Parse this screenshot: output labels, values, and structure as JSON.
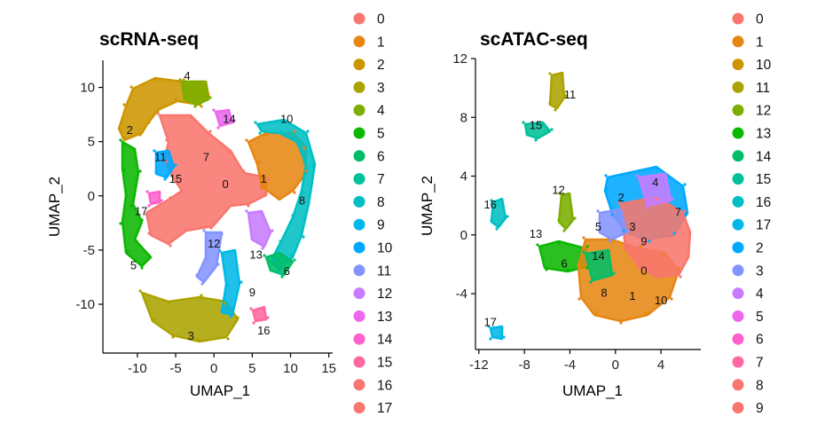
{
  "chart_data": [
    {
      "type": "scatter",
      "title": "scRNA-seq",
      "xlabel": "UMAP_1",
      "ylabel": "UMAP_2",
      "xlim": [
        -14.5,
        15.5
      ],
      "ylim": [
        -14.5,
        12.5
      ],
      "xticks": [
        -10,
        -5,
        0,
        5,
        10,
        15
      ],
      "yticks": [
        -10,
        -5,
        0,
        5,
        10
      ],
      "xtick_labels": [
        "-10",
        "-5",
        "0",
        "5",
        "10",
        "15"
      ],
      "ytick_labels": [
        "-10",
        "-5",
        "0",
        "5",
        "10"
      ],
      "legend": [
        "0",
        "1",
        "2",
        "3",
        "4",
        "5",
        "6",
        "7",
        "8",
        "9",
        "10",
        "11",
        "12",
        "13",
        "14",
        "15",
        "16",
        "17"
      ],
      "clusters": [
        {
          "label": "0",
          "x": 1.5,
          "y": 1.0,
          "color": "#F8766D"
        },
        {
          "label": "1",
          "x": 6.5,
          "y": 1.5,
          "color": "#E68613"
        },
        {
          "label": "2",
          "x": -11.0,
          "y": 6.0,
          "color": "#CD9600"
        },
        {
          "label": "3",
          "x": -3.0,
          "y": -13.0,
          "color": "#ABA300"
        },
        {
          "label": "4",
          "x": -3.5,
          "y": 11.0,
          "color": "#7CAE00"
        },
        {
          "label": "5",
          "x": -10.5,
          "y": -6.5,
          "color": "#0CB702"
        },
        {
          "label": "6",
          "x": 9.5,
          "y": -7.0,
          "color": "#00BE67"
        },
        {
          "label": "7",
          "x": -1.0,
          "y": 3.5,
          "color": "#00C19A"
        },
        {
          "label": "8",
          "x": 11.5,
          "y": -0.5,
          "color": "#00BFC4"
        },
        {
          "label": "9",
          "x": 5.0,
          "y": -9.0,
          "color": "#00B8E7"
        },
        {
          "label": "10",
          "x": 9.5,
          "y": 7.0,
          "color": "#00A9FF"
        },
        {
          "label": "11",
          "x": -7.0,
          "y": 3.5,
          "color": "#8494FF"
        },
        {
          "label": "12",
          "x": 0.0,
          "y": -4.5,
          "color": "#C77CFF"
        },
        {
          "label": "13",
          "x": 5.5,
          "y": -5.5,
          "color": "#ED68ED"
        },
        {
          "label": "14",
          "x": 2.0,
          "y": 7.0,
          "color": "#FF61CC"
        },
        {
          "label": "15",
          "x": -5.0,
          "y": 1.5,
          "color": "#FF68A1"
        },
        {
          "label": "16",
          "x": 6.5,
          "y": -12.5,
          "color": "#F8766D"
        },
        {
          "label": "17",
          "x": -9.5,
          "y": -1.5,
          "color": "#F8766D"
        }
      ]
    },
    {
      "type": "scatter",
      "title": "scATAC-seq",
      "xlabel": "UMAP_1",
      "ylabel": "UMAP_2",
      "xlim": [
        -12.3,
        7.5
      ],
      "ylim": [
        -7.8,
        12.0
      ],
      "xticks": [
        -12,
        -8,
        -4,
        0,
        4
      ],
      "yticks": [
        -4,
        0,
        4,
        8,
        12
      ],
      "xtick_labels": [
        "-12",
        "-8",
        "-4",
        "0",
        "4"
      ],
      "ytick_labels": [
        "-4",
        "0",
        "4",
        "8",
        "12"
      ],
      "legend": [
        "0",
        "1",
        "10",
        "11",
        "12",
        "13",
        "14",
        "15",
        "16",
        "17",
        "2",
        "3",
        "4",
        "5",
        "6",
        "7",
        "8",
        "9"
      ],
      "clusters": [
        {
          "label": "0",
          "x": 2.5,
          "y": -2.5,
          "color": "#F8766D"
        },
        {
          "label": "1",
          "x": 1.5,
          "y": -4.2,
          "color": "#E68613"
        },
        {
          "label": "10",
          "x": 4.0,
          "y": -4.5,
          "color": "#CD9600"
        },
        {
          "label": "11",
          "x": -4.0,
          "y": 9.5,
          "color": "#ABA300"
        },
        {
          "label": "12",
          "x": -5.0,
          "y": 3.0,
          "color": "#7CAE00"
        },
        {
          "label": "13",
          "x": -7.0,
          "y": 0.0,
          "color": "#0CB702"
        },
        {
          "label": "14",
          "x": -1.5,
          "y": -1.5,
          "color": "#00BE67"
        },
        {
          "label": "15",
          "x": -7.0,
          "y": 7.4,
          "color": "#00C19A"
        },
        {
          "label": "16",
          "x": -11.0,
          "y": 2.0,
          "color": "#00BFC4"
        },
        {
          "label": "17",
          "x": -11.0,
          "y": -6.0,
          "color": "#00B8E7"
        },
        {
          "label": "2",
          "x": 0.5,
          "y": 2.5,
          "color": "#00A9FF"
        },
        {
          "label": "3",
          "x": 1.5,
          "y": 0.5,
          "color": "#8494FF"
        },
        {
          "label": "4",
          "x": 3.5,
          "y": 3.5,
          "color": "#C77CFF"
        },
        {
          "label": "5",
          "x": -1.5,
          "y": 0.5,
          "color": "#ED68ED"
        },
        {
          "label": "6",
          "x": -4.5,
          "y": -2.0,
          "color": "#FF61CC"
        },
        {
          "label": "7",
          "x": 5.5,
          "y": 1.5,
          "color": "#FF68A1"
        },
        {
          "label": "8",
          "x": -1.0,
          "y": -4.0,
          "color": "#F8766D"
        },
        {
          "label": "9",
          "x": 2.5,
          "y": -0.5,
          "color": "#F8766D"
        }
      ]
    }
  ]
}
